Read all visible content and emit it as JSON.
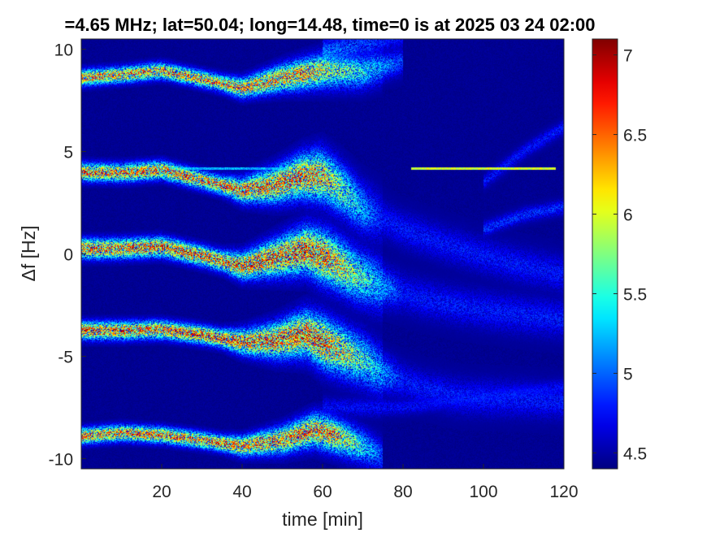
{
  "chart_data": {
    "type": "heatmap",
    "title": "=4.65 MHz;  lat=50.04; long=14.48, time=0 is at 2025 03 24 02:00",
    "xlabel": "time [min]",
    "ylabel": "Δf [Hz]",
    "xlim": [
      0,
      120
    ],
    "ylim": [
      -10.5,
      10.5
    ],
    "xticks": [
      {
        "value": 20,
        "label": "20"
      },
      {
        "value": 40,
        "label": "40"
      },
      {
        "value": 60,
        "label": "60"
      },
      {
        "value": 80,
        "label": "80"
      },
      {
        "value": 100,
        "label": "100"
      },
      {
        "value": 120,
        "label": "120"
      }
    ],
    "yticks": [
      {
        "value": 10,
        "label": "10"
      },
      {
        "value": 5,
        "label": "5"
      },
      {
        "value": 0,
        "label": "0"
      },
      {
        "value": -5,
        "label": "-5"
      },
      {
        "value": -10,
        "label": "-10"
      }
    ],
    "colorbar": {
      "colormap": "jet",
      "clim": [
        4.4,
        7.1
      ],
      "ticks": [
        {
          "value": 7,
          "label": "7"
        },
        {
          "value": 6.5,
          "label": "6.5"
        },
        {
          "value": 6,
          "label": "6"
        },
        {
          "value": 5.5,
          "label": "5.5"
        },
        {
          "value": 5,
          "label": "5"
        },
        {
          "value": 4.5,
          "label": "4.5"
        }
      ]
    },
    "background_value": 4.45,
    "traces": [
      {
        "name": "band-10",
        "points": [
          [
            0,
            8.6
          ],
          [
            10,
            8.75
          ],
          [
            20,
            8.95
          ],
          [
            30,
            8.55
          ],
          [
            40,
            8.1
          ],
          [
            50,
            8.6
          ],
          [
            60,
            8.95
          ],
          [
            70,
            8.9
          ],
          [
            80,
            9.4
          ]
        ],
        "fade_start": 55,
        "fade_end": 82,
        "peak": 6.8,
        "width": 0.45,
        "spread": 0.5
      },
      {
        "name": "band-5",
        "points": [
          [
            0,
            4.0
          ],
          [
            10,
            3.95
          ],
          [
            20,
            4.1
          ],
          [
            30,
            3.6
          ],
          [
            40,
            3.1
          ],
          [
            48,
            3.35
          ],
          [
            55,
            3.8
          ],
          [
            60,
            3.8
          ],
          [
            65,
            3.1
          ],
          [
            70,
            2.2
          ],
          [
            80,
            1.2
          ],
          [
            90,
            0.5
          ],
          [
            100,
            -0.1
          ],
          [
            110,
            -0.6
          ],
          [
            120,
            -1.0
          ]
        ],
        "fade_start": 58,
        "fade_end": 75,
        "peak": 6.9,
        "width": 0.5,
        "spread": 0.9
      },
      {
        "name": "band-0",
        "points": [
          [
            0,
            0.25
          ],
          [
            10,
            0.25
          ],
          [
            20,
            0.35
          ],
          [
            30,
            -0.1
          ],
          [
            40,
            -0.6
          ],
          [
            48,
            -0.2
          ],
          [
            56,
            0.2
          ],
          [
            62,
            -0.3
          ],
          [
            68,
            -1.0
          ],
          [
            75,
            -1.6
          ],
          [
            85,
            -2.2
          ],
          [
            95,
            -2.6
          ],
          [
            110,
            -3.0
          ],
          [
            120,
            -3.2
          ]
        ],
        "fade_start": 60,
        "fade_end": 80,
        "peak": 7.0,
        "width": 0.55,
        "spread": 0.9
      },
      {
        "name": "band-neg5",
        "points": [
          [
            0,
            -3.75
          ],
          [
            10,
            -3.75
          ],
          [
            20,
            -3.7
          ],
          [
            30,
            -3.95
          ],
          [
            40,
            -4.3
          ],
          [
            48,
            -4.25
          ],
          [
            56,
            -3.9
          ],
          [
            62,
            -4.5
          ],
          [
            70,
            -5.2
          ],
          [
            75,
            -5.8
          ],
          [
            85,
            -6.6
          ],
          [
            95,
            -7.0
          ],
          [
            110,
            -7.1
          ],
          [
            120,
            -7.2
          ]
        ],
        "fade_start": 60,
        "fade_end": 80,
        "peak": 7.0,
        "width": 0.5,
        "spread": 0.9
      },
      {
        "name": "band-neg10",
        "points": [
          [
            0,
            -8.9
          ],
          [
            10,
            -8.75
          ],
          [
            20,
            -8.85
          ],
          [
            30,
            -9.1
          ],
          [
            40,
            -9.4
          ],
          [
            50,
            -9.1
          ],
          [
            58,
            -8.6
          ],
          [
            62,
            -8.8
          ],
          [
            70,
            -9.4
          ],
          [
            75,
            -9.9
          ]
        ],
        "fade_start": 62,
        "fade_end": 76,
        "peak": 6.9,
        "width": 0.45,
        "spread": 0.5
      },
      {
        "name": "faint-upper",
        "points": [
          [
            60,
            9.8
          ],
          [
            70,
            10.2
          ],
          [
            80,
            10.6
          ]
        ],
        "fade_start": 60,
        "fade_end": 90,
        "peak": 5.3,
        "width": 0.5,
        "spread": 0.3
      },
      {
        "name": "faint-right-5",
        "points": [
          [
            100,
            3.5
          ],
          [
            110,
            5.0
          ],
          [
            120,
            6.2
          ]
        ],
        "fade_start": 120,
        "fade_end": 121,
        "peak": 4.9,
        "width": 0.3,
        "spread": 0.2
      },
      {
        "name": "faint-right-2",
        "points": [
          [
            100,
            1.2
          ],
          [
            110,
            1.9
          ],
          [
            120,
            2.3
          ]
        ],
        "fade_start": 120,
        "fade_end": 121,
        "peak": 5.0,
        "width": 0.3,
        "spread": 0.2
      },
      {
        "name": "faint-right-neg6",
        "points": [
          [
            60,
            -7.5
          ],
          [
            80,
            -7.5
          ],
          [
            100,
            -7.0
          ],
          [
            120,
            -6.5
          ]
        ],
        "fade_start": 120,
        "fade_end": 121,
        "peak": 4.85,
        "width": 0.35,
        "spread": 0.2
      }
    ],
    "carrier_line": {
      "x_start": 82,
      "x_end": 118,
      "y": 4.15,
      "value": 6.2
    },
    "carrier_line_left": {
      "x_start": 22,
      "x_end": 52,
      "y": 4.15,
      "value": 5.4
    }
  }
}
